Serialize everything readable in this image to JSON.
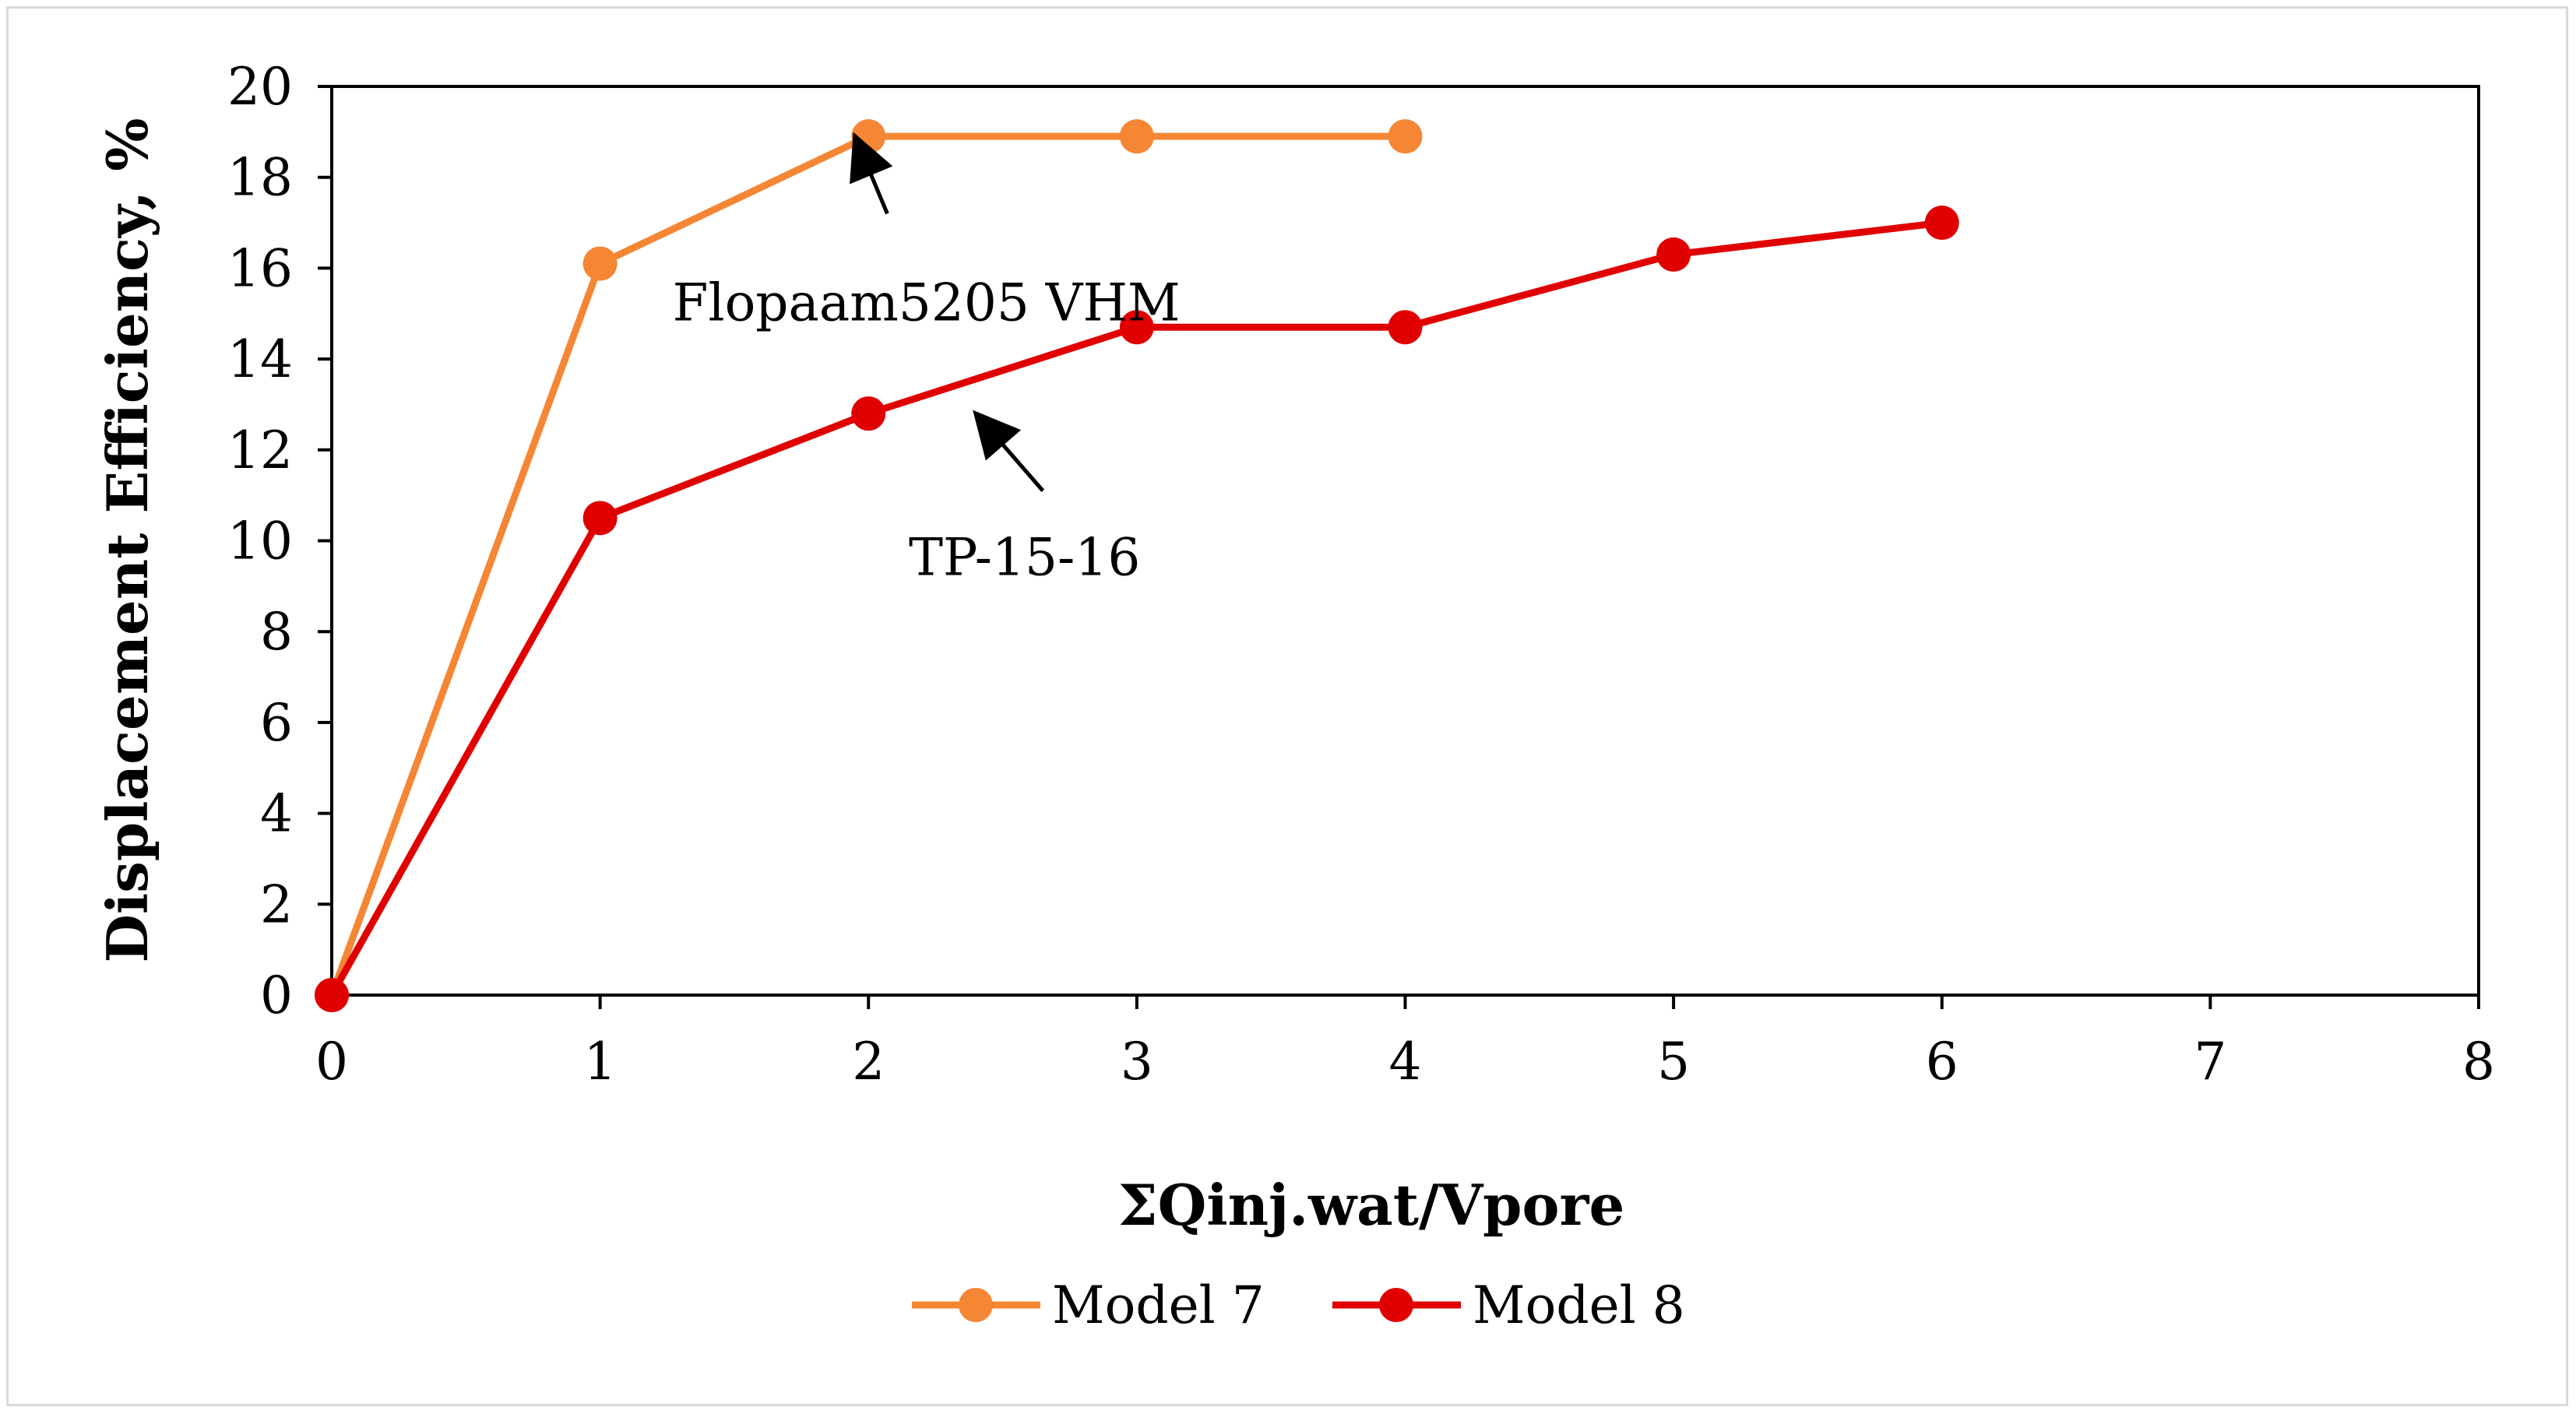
{
  "chart_data": {
    "type": "line",
    "title": "",
    "xlabel": "ΣQinj.wat/Vpore",
    "ylabel": "Displacement Efficiency, %",
    "xlim": [
      0,
      8
    ],
    "ylim": [
      0,
      20
    ],
    "x_ticks": [
      0,
      1,
      2,
      3,
      4,
      5,
      6,
      7,
      8
    ],
    "y_ticks": [
      0,
      2,
      4,
      6,
      8,
      10,
      12,
      14,
      16,
      18,
      20
    ],
    "grid": false,
    "legend_position": "bottom",
    "series": [
      {
        "name": "Model 7",
        "color": "#F58634",
        "x": [
          0,
          1,
          2,
          3,
          4
        ],
        "y": [
          0,
          16.1,
          18.9,
          18.9,
          18.9
        ]
      },
      {
        "name": "Model 8",
        "color": "#E00000",
        "x": [
          0,
          1,
          2,
          3,
          4,
          5,
          6
        ],
        "y": [
          0,
          10.5,
          12.8,
          14.7,
          14.7,
          16.3,
          17.0
        ]
      }
    ],
    "annotations": [
      {
        "text": "Flopaam5205 VHM",
        "target_x": 1.95,
        "target_y": 18.9
      },
      {
        "text": "TP-15-16",
        "target_x": 2.4,
        "target_y": 12.8
      }
    ]
  }
}
